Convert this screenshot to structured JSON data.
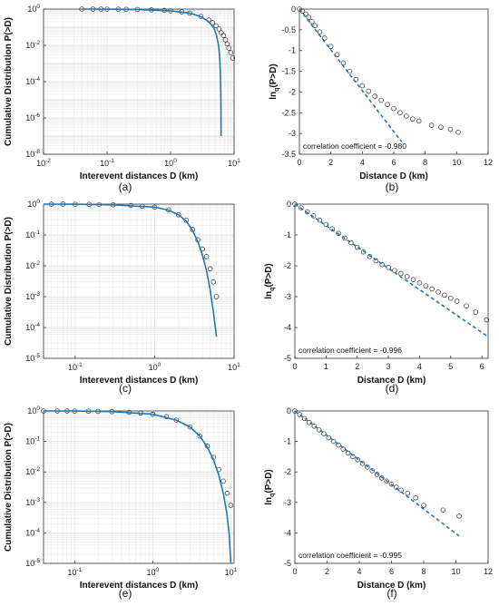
{
  "figure": {
    "panel_labels": [
      "(a)",
      "(b)",
      "(c)",
      "(d)",
      "(e)",
      "(f)"
    ]
  },
  "colors": {
    "fit": "#1f77b4",
    "marker": "#333333",
    "grid": "#e6e6e6",
    "axis": "#333333"
  },
  "chart_data": [
    {
      "type": "scatter",
      "panel": "(a)",
      "xscale": "log",
      "yscale": "log",
      "xlim": [
        0.01,
        10
      ],
      "ylim": [
        1e-08,
        1
      ],
      "xlabel": "Interevent distances D (km)",
      "ylabel": "Cumulative Distribution P(>D)",
      "xticks": [
        {
          "v": 0.01,
          "b": "10",
          "e": "-2"
        },
        {
          "v": 0.1,
          "b": "10",
          "e": "-1"
        },
        {
          "v": 1,
          "b": "10",
          "e": "0"
        },
        {
          "v": 10,
          "b": "10",
          "e": "1"
        }
      ],
      "yticks": [
        {
          "v": 1e-08,
          "b": "10",
          "e": "-8"
        },
        {
          "v": 1e-06,
          "b": "10",
          "e": "-6"
        },
        {
          "v": 0.0001,
          "b": "10",
          "e": "-4"
        },
        {
          "v": 0.01,
          "b": "10",
          "e": "-2"
        },
        {
          "v": 1,
          "b": "10",
          "e": "0"
        }
      ],
      "grid": true,
      "series": [
        {
          "kind": "markers",
          "x": [
            0.04,
            0.06,
            0.08,
            0.1,
            0.15,
            0.2,
            0.3,
            0.5,
            0.8,
            1.0,
            1.5,
            2.0,
            3.0,
            4.0,
            4.6,
            5.2,
            5.8,
            6.3,
            6.8,
            7.3,
            7.8,
            8.3,
            8.9,
            9.5
          ],
          "y": [
            1.0,
            1.0,
            1.0,
            0.99,
            0.98,
            0.97,
            0.95,
            0.9,
            0.85,
            0.8,
            0.7,
            0.6,
            0.4,
            0.25,
            0.18,
            0.12,
            0.08,
            0.05,
            0.035,
            0.02,
            0.012,
            0.007,
            0.004,
            0.002
          ]
        },
        {
          "kind": "line",
          "x": [
            0.04,
            0.1,
            0.3,
            1.0,
            2.0,
            3.0,
            4.0,
            4.8,
            5.3,
            5.7,
            5.95,
            6.1,
            6.2,
            6.25
          ],
          "y": [
            1.0,
            0.99,
            0.95,
            0.8,
            0.6,
            0.38,
            0.2,
            0.09,
            0.035,
            0.01,
            0.002,
            0.0002,
            1e-05,
            1e-07
          ]
        }
      ]
    },
    {
      "type": "scatter",
      "panel": "(b)",
      "xscale": "linear",
      "yscale": "linear",
      "xlim": [
        0,
        12
      ],
      "ylim": [
        -3.5,
        0
      ],
      "xlabel": "Distance D (km)",
      "ylabel": "ln_q(P>D)",
      "xticks": [
        0,
        2,
        4,
        6,
        8,
        10,
        12
      ],
      "yticks": [
        0,
        -0.5,
        -1,
        -1.5,
        -2,
        -2.5,
        -3,
        -3.5
      ],
      "annotation": "correlation coefficient = -0.980",
      "grid": false,
      "series": [
        {
          "kind": "markers",
          "x": [
            0,
            0.2,
            0.4,
            0.6,
            0.8,
            1.0,
            1.3,
            1.6,
            2.0,
            2.4,
            2.8,
            3.2,
            3.6,
            4.0,
            4.4,
            4.8,
            5.2,
            5.6,
            6.0,
            6.4,
            6.8,
            7.2,
            7.6,
            8.4,
            9.0,
            9.6,
            10.1
          ],
          "y": [
            0,
            -0.05,
            -0.12,
            -0.2,
            -0.3,
            -0.4,
            -0.55,
            -0.7,
            -0.9,
            -1.1,
            -1.3,
            -1.5,
            -1.7,
            -1.85,
            -1.98,
            -2.1,
            -2.2,
            -2.3,
            -2.4,
            -2.5,
            -2.58,
            -2.65,
            -2.7,
            -2.8,
            -2.85,
            -2.9,
            -2.97
          ]
        },
        {
          "kind": "dashed",
          "x": [
            0,
            6.5
          ],
          "y": [
            0,
            -3.2
          ]
        }
      ]
    },
    {
      "type": "scatter",
      "panel": "(c)",
      "xscale": "log",
      "yscale": "log",
      "xlim": [
        0.04,
        10
      ],
      "ylim": [
        1e-05,
        1
      ],
      "xlabel": "Interevent distances D (km)",
      "ylabel": "Cumulative Distribution P(>D)",
      "xticks": [
        {
          "v": 0.1,
          "b": "10",
          "e": "-1"
        },
        {
          "v": 1,
          "b": "10",
          "e": "0"
        },
        {
          "v": 10,
          "b": "10",
          "e": "1"
        }
      ],
      "yticks": [
        {
          "v": 1e-05,
          "b": "10",
          "e": "-5"
        },
        {
          "v": 0.0001,
          "b": "10",
          "e": "-4"
        },
        {
          "v": 0.001,
          "b": "10",
          "e": "-3"
        },
        {
          "v": 0.01,
          "b": "10",
          "e": "-2"
        },
        {
          "v": 0.1,
          "b": "10",
          "e": "-1"
        },
        {
          "v": 1,
          "b": "10",
          "e": "0"
        }
      ],
      "grid": true,
      "series": [
        {
          "kind": "markers",
          "x": [
            0.05,
            0.07,
            0.1,
            0.15,
            0.2,
            0.3,
            0.5,
            0.7,
            1.0,
            1.5,
            2.0,
            2.5,
            3.0,
            3.5,
            4.0,
            4.5,
            5.0,
            5.5,
            6.0
          ],
          "y": [
            1.0,
            1.0,
            0.99,
            0.98,
            0.97,
            0.95,
            0.9,
            0.85,
            0.8,
            0.65,
            0.45,
            0.3,
            0.15,
            0.07,
            0.035,
            0.02,
            0.008,
            0.003,
            0.001
          ]
        },
        {
          "kind": "line",
          "x": [
            0.04,
            0.1,
            0.3,
            1.0,
            1.5,
            2.0,
            2.5,
            3.0,
            3.5,
            4.0,
            4.5,
            5.0,
            5.5,
            6.0
          ],
          "y": [
            1.0,
            0.99,
            0.95,
            0.8,
            0.64,
            0.45,
            0.28,
            0.14,
            0.06,
            0.022,
            0.007,
            0.0017,
            0.0003,
            5e-05
          ]
        }
      ]
    },
    {
      "type": "scatter",
      "panel": "(d)",
      "xscale": "linear",
      "yscale": "linear",
      "xlim": [
        0,
        6.2
      ],
      "ylim": [
        -5,
        0
      ],
      "xlabel": "Distance D (km)",
      "ylabel": "ln_q(P>D)",
      "xticks": [
        0,
        1,
        2,
        3,
        4,
        5,
        6
      ],
      "yticks": [
        0,
        -1,
        -2,
        -3,
        -4,
        -5
      ],
      "annotation": "correlation coefficient = -0.996",
      "grid": false,
      "series": [
        {
          "kind": "markers",
          "x": [
            0,
            0.2,
            0.4,
            0.6,
            0.8,
            1.0,
            1.2,
            1.4,
            1.6,
            1.8,
            2.0,
            2.2,
            2.4,
            2.6,
            2.8,
            3.0,
            3.2,
            3.4,
            3.6,
            3.8,
            4.0,
            4.2,
            4.4,
            4.6,
            4.8,
            5.0,
            5.2,
            5.5,
            5.8,
            6.15
          ],
          "y": [
            0,
            -0.12,
            -0.25,
            -0.38,
            -0.52,
            -0.66,
            -0.8,
            -0.95,
            -1.1,
            -1.25,
            -1.4,
            -1.55,
            -1.7,
            -1.84,
            -1.96,
            -2.05,
            -2.15,
            -2.25,
            -2.35,
            -2.45,
            -2.55,
            -2.65,
            -2.75,
            -2.85,
            -2.95,
            -3.05,
            -3.15,
            -3.3,
            -3.5,
            -3.75
          ]
        },
        {
          "kind": "dashed",
          "x": [
            0,
            6.2
          ],
          "y": [
            0,
            -4.3
          ]
        }
      ]
    },
    {
      "type": "scatter",
      "panel": "(e)",
      "xscale": "log",
      "yscale": "log",
      "xlim": [
        0.04,
        11
      ],
      "ylim": [
        1e-05,
        1
      ],
      "xlabel": "Interevent distances D (km)",
      "ylabel": "Cumulative Distribution P(>D)",
      "xticks": [
        {
          "v": 0.1,
          "b": "10",
          "e": "-1"
        },
        {
          "v": 1,
          "b": "10",
          "e": "0"
        },
        {
          "v": 10,
          "b": "10",
          "e": "1"
        }
      ],
      "yticks": [
        {
          "v": 1e-05,
          "b": "10",
          "e": "-5"
        },
        {
          "v": 0.0001,
          "b": "10",
          "e": "-4"
        },
        {
          "v": 0.001,
          "b": "10",
          "e": "-3"
        },
        {
          "v": 0.01,
          "b": "10",
          "e": "-2"
        },
        {
          "v": 0.1,
          "b": "10",
          "e": "-1"
        },
        {
          "v": 1,
          "b": "10",
          "e": "0"
        }
      ],
      "grid": true,
      "series": [
        {
          "kind": "markers",
          "x": [
            0.04,
            0.06,
            0.08,
            0.1,
            0.15,
            0.2,
            0.3,
            0.5,
            0.7,
            1.0,
            1.5,
            2.0,
            3.0,
            4.0,
            5.0,
            6.0,
            7.0,
            8.0,
            9.0,
            10.0
          ],
          "y": [
            1.0,
            1.0,
            1.0,
            0.99,
            0.98,
            0.97,
            0.95,
            0.9,
            0.85,
            0.78,
            0.65,
            0.5,
            0.3,
            0.15,
            0.07,
            0.03,
            0.012,
            0.005,
            0.002,
            0.0008
          ]
        },
        {
          "kind": "line",
          "x": [
            0.04,
            0.1,
            0.3,
            1.0,
            2.0,
            3.0,
            4.0,
            5.0,
            6.0,
            7.0,
            8.0,
            8.8,
            9.5,
            10.0
          ],
          "y": [
            1.0,
            0.99,
            0.95,
            0.78,
            0.5,
            0.3,
            0.15,
            0.065,
            0.025,
            0.008,
            0.002,
            0.0005,
            0.0001,
            1e-05
          ]
        }
      ]
    },
    {
      "type": "scatter",
      "panel": "(f)",
      "xscale": "linear",
      "yscale": "linear",
      "xlim": [
        0,
        12
      ],
      "ylim": [
        -5,
        0
      ],
      "xlabel": "Distance D (km)",
      "ylabel": "ln_q(P>D)",
      "xticks": [
        0,
        2,
        4,
        6,
        8,
        10,
        12
      ],
      "yticks": [
        0,
        -1,
        -2,
        -3,
        -4,
        -5
      ],
      "annotation": "correlation coefficient = -0.995",
      "grid": false,
      "series": [
        {
          "kind": "markers",
          "x": [
            0,
            0.3,
            0.6,
            0.9,
            1.2,
            1.5,
            1.8,
            2.1,
            2.4,
            2.7,
            3.0,
            3.3,
            3.6,
            3.9,
            4.2,
            4.5,
            4.8,
            5.1,
            5.4,
            5.7,
            6.0,
            6.3,
            6.6,
            7.0,
            7.5,
            8.0,
            9.2,
            10.2
          ],
          "y": [
            0,
            -0.12,
            -0.25,
            -0.38,
            -0.5,
            -0.62,
            -0.75,
            -0.88,
            -1.0,
            -1.12,
            -1.25,
            -1.38,
            -1.5,
            -1.6,
            -1.72,
            -1.84,
            -1.96,
            -2.08,
            -2.2,
            -2.3,
            -2.4,
            -2.5,
            -2.6,
            -2.7,
            -2.85,
            -3.1,
            -3.25,
            -3.45
          ]
        },
        {
          "kind": "dashed",
          "x": [
            0,
            10.2
          ],
          "y": [
            0,
            -4.1
          ]
        }
      ]
    }
  ]
}
